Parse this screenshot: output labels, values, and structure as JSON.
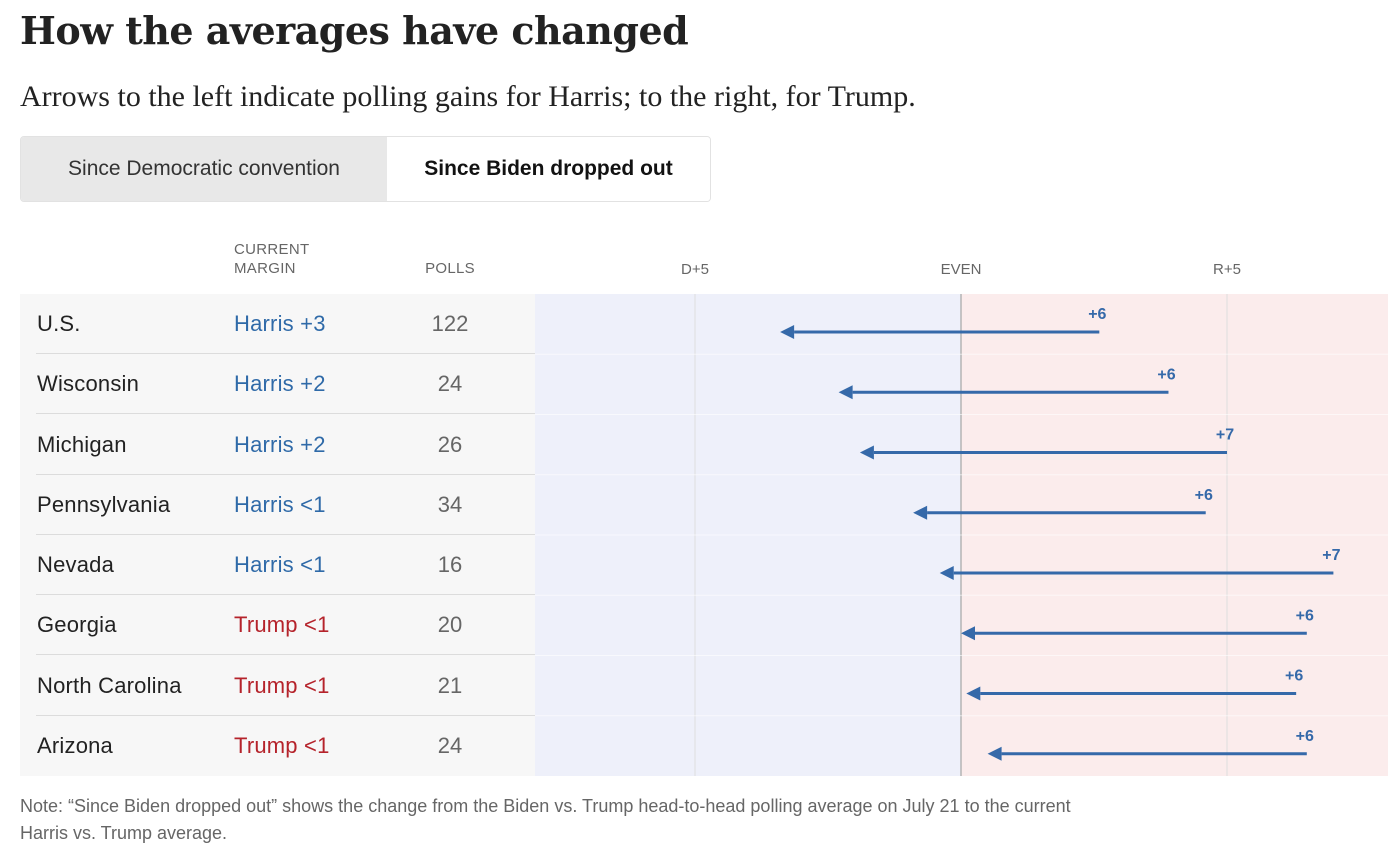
{
  "title": "How the averages have changed",
  "subtitle": "Arrows to the left indicate polling gains for Harris; to the right, for Trump.",
  "tabs": [
    {
      "label": "Since Democratic convention",
      "active": false
    },
    {
      "label": "Since Biden dropped out",
      "active": true
    }
  ],
  "columns": {
    "margin": "CURRENT MARGIN",
    "polls": "POLLS"
  },
  "colors": {
    "harris": "#2f6aa8",
    "trump": "#b5232b",
    "arrow": "#3569a9",
    "dem_bg": "#eef0fa",
    "rep_bg": "#fbecec"
  },
  "chart_data": {
    "type": "arrow",
    "x_axis": {
      "ticks": [
        -5,
        0,
        5
      ],
      "tick_labels": [
        "D+5",
        "EVEN",
        "R+5"
      ],
      "range": [
        -8,
        8
      ],
      "note": "negative = Democratic margin, positive = Republican margin"
    },
    "rows": [
      {
        "state": "U.S.",
        "margin_label": "Harris +3",
        "party": "harris",
        "polls": "122",
        "from": 2.6,
        "to": -3.4,
        "change_label": "+6"
      },
      {
        "state": "Wisconsin",
        "margin_label": "Harris +2",
        "party": "harris",
        "polls": "24",
        "from": 3.9,
        "to": -2.3,
        "change_label": "+6"
      },
      {
        "state": "Michigan",
        "margin_label": "Harris +2",
        "party": "harris",
        "polls": "26",
        "from": 5.0,
        "to": -1.9,
        "change_label": "+7"
      },
      {
        "state": "Pennsylvania",
        "margin_label": "Harris <1",
        "party": "harris",
        "polls": "34",
        "from": 4.6,
        "to": -0.9,
        "change_label": "+6"
      },
      {
        "state": "Nevada",
        "margin_label": "Harris <1",
        "party": "harris",
        "polls": "16",
        "from": 7.0,
        "to": -0.4,
        "change_label": "+7"
      },
      {
        "state": "Georgia",
        "margin_label": "Trump <1",
        "party": "trump",
        "polls": "20",
        "from": 6.5,
        "to": 0.0,
        "change_label": "+6"
      },
      {
        "state": "North Carolina",
        "margin_label": "Trump <1",
        "party": "trump",
        "polls": "21",
        "from": 6.3,
        "to": 0.1,
        "change_label": "+6"
      },
      {
        "state": "Arizona",
        "margin_label": "Trump <1",
        "party": "trump",
        "polls": "24",
        "from": 6.5,
        "to": 0.5,
        "change_label": "+6"
      }
    ]
  },
  "footnote": "Note: “Since Biden dropped out” shows the change from the Biden vs. Trump head-to-head polling average on July 21 to the current Harris vs. Trump average."
}
